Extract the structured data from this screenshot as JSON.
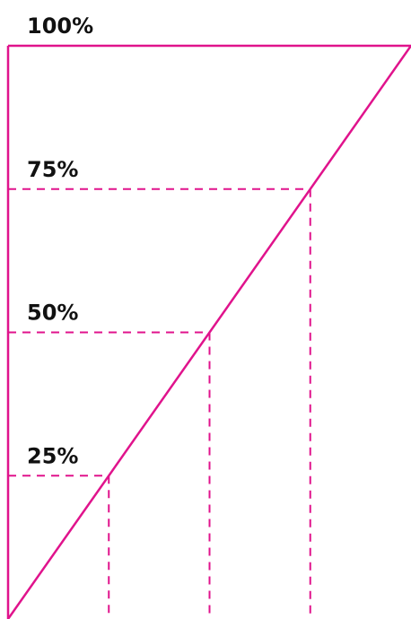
{
  "chart_data": {
    "type": "line",
    "title": "",
    "xlabel": "",
    "ylabel": "",
    "ylim": [
      0,
      100
    ],
    "xlim": [
      0,
      100
    ],
    "tick_labels": [
      "100%",
      "75%",
      "50%",
      "25%"
    ],
    "ticks": [
      100,
      75,
      50,
      25
    ],
    "series": [
      {
        "x": [
          0,
          100
        ],
        "y": [
          0,
          100
        ]
      }
    ],
    "reference_points": [
      25,
      50,
      75
    ],
    "grid": false,
    "legend": "none",
    "colors": {
      "line": "#e0138c",
      "frame": "#e0138c",
      "label": "#111111"
    }
  }
}
